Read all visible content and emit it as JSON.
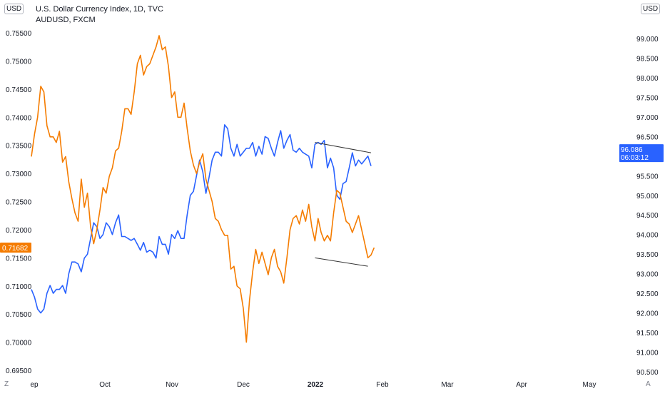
{
  "legend": {
    "title": "U.S. Dollar Currency Index, 1D, TVC",
    "compare": "AUDUSD, FXCM"
  },
  "left_currency": "USD",
  "right_currency": "USD",
  "bottom_left_btn": "Z",
  "bottom_right_btn": "A",
  "colors": {
    "dxy": "#2962ff",
    "audusd": "#f57c00",
    "trend": "#333333",
    "axis_text": "#131722"
  },
  "chart_data": {
    "type": "line",
    "series": [
      {
        "name": "U.S. Dollar Currency Index, 1D, TVC",
        "axis": "right",
        "current_label": "96.086",
        "countdown": "06:03:12",
        "x": [
          0,
          1,
          2,
          3,
          4,
          5,
          6,
          7,
          8,
          9,
          10,
          11,
          12,
          13,
          14,
          15,
          16,
          17,
          18,
          19,
          20,
          21,
          22,
          23,
          24,
          25,
          26,
          27,
          28,
          29,
          30,
          31,
          32,
          33,
          34,
          35,
          36,
          37,
          38,
          39,
          40,
          41,
          42,
          43,
          44,
          45,
          46,
          47,
          48,
          49,
          50,
          51,
          52,
          53,
          54,
          55,
          56,
          57,
          58,
          59,
          60,
          61,
          62,
          63,
          64,
          65,
          66,
          67,
          68,
          69,
          70,
          71,
          72,
          73,
          74,
          75,
          76,
          77,
          78,
          79,
          80,
          81,
          82,
          83,
          84,
          85,
          86,
          87,
          88,
          89,
          90,
          91,
          92,
          93,
          94,
          95,
          96,
          97,
          98,
          99,
          100,
          101,
          102,
          103
        ],
        "values": [
          92.6,
          92.4,
          92.1,
          92.0,
          92.1,
          92.5,
          92.7,
          92.5,
          92.6,
          92.6,
          92.7,
          92.5,
          93.0,
          93.3,
          93.3,
          93.25,
          93.05,
          93.4,
          93.5,
          93.9,
          94.3,
          94.2,
          93.9,
          94.0,
          94.3,
          94.2,
          94.0,
          94.3,
          94.5,
          93.95,
          93.95,
          93.9,
          93.85,
          93.9,
          93.75,
          93.6,
          93.8,
          93.55,
          93.6,
          93.55,
          93.4,
          93.95,
          93.75,
          93.75,
          93.5,
          94.0,
          93.9,
          94.1,
          93.9,
          93.9,
          94.5,
          95.0,
          95.1,
          95.5,
          95.9,
          95.6,
          95.05,
          95.45,
          95.9,
          96.1,
          96.1,
          96.0,
          96.8,
          96.7,
          96.2,
          96.0,
          96.3,
          96.0,
          96.1,
          96.2,
          96.2,
          96.35,
          96.0,
          96.25,
          96.05,
          96.5,
          96.45,
          96.2,
          96.0,
          96.35,
          96.65,
          96.2,
          96.4,
          96.55,
          96.15,
          96.1,
          96.2,
          96.1,
          96.05,
          96.0,
          95.7,
          96.3,
          96.35,
          96.3,
          96.4,
          95.7,
          95.95,
          95.7,
          95.0,
          94.9,
          95.3,
          95.35,
          95.7,
          96.086
        ],
        "extra": [
          [
            104,
            95.75
          ],
          [
            105,
            95.9
          ],
          [
            106,
            95.8
          ],
          [
            107,
            95.9
          ],
          [
            108,
            96.0
          ],
          [
            109,
            95.75
          ]
        ]
      },
      {
        "name": "AUDUSD, FXCM",
        "axis": "left",
        "current_label": "0.71682",
        "x": [
          0,
          1,
          2,
          3,
          4,
          5,
          6,
          7,
          8,
          9,
          10,
          11,
          12,
          13,
          14,
          15,
          16,
          17,
          18,
          19,
          20,
          21,
          22,
          23,
          24,
          25,
          26,
          27,
          28,
          29,
          30,
          31,
          32,
          33,
          34,
          35,
          36,
          37,
          38,
          39,
          40,
          41,
          42,
          43,
          44,
          45,
          46,
          47,
          48,
          49,
          50,
          51,
          52,
          53,
          54,
          55,
          56,
          57,
          58,
          59,
          60,
          61,
          62,
          63,
          64,
          65,
          66,
          67,
          68,
          69,
          70,
          71,
          72,
          73,
          74,
          75,
          76,
          77,
          78,
          79,
          80,
          81,
          82,
          83,
          84,
          85,
          86,
          87,
          88,
          89,
          90,
          91,
          92,
          93,
          94,
          95,
          96,
          97,
          98,
          99,
          100,
          101,
          102,
          103
        ],
        "values": [
          0.733,
          0.737,
          0.74,
          0.7455,
          0.7445,
          0.7385,
          0.7365,
          0.7365,
          0.7355,
          0.7375,
          0.732,
          0.733,
          0.7285,
          0.7255,
          0.723,
          0.7215,
          0.729,
          0.724,
          0.7265,
          0.7205,
          0.7175,
          0.72,
          0.7235,
          0.7275,
          0.7265,
          0.7295,
          0.731,
          0.734,
          0.7345,
          0.7375,
          0.7415,
          0.7415,
          0.7405,
          0.7445,
          0.7495,
          0.751,
          0.7475,
          0.749,
          0.7495,
          0.751,
          0.7525,
          0.7545,
          0.752,
          0.7525,
          0.749,
          0.7435,
          0.7445,
          0.74,
          0.74,
          0.7425,
          0.738,
          0.734,
          0.7315,
          0.73,
          0.732,
          0.7335,
          0.729,
          0.727,
          0.725,
          0.722,
          0.7215,
          0.72,
          0.719,
          0.719,
          0.713,
          0.7135,
          0.71,
          0.7095,
          0.706,
          0.7,
          0.7075,
          0.7125,
          0.7165,
          0.714,
          0.716,
          0.714,
          0.712,
          0.715,
          0.7165,
          0.7135,
          0.7125,
          0.7105,
          0.715,
          0.72,
          0.722,
          0.7225,
          0.721,
          0.7235,
          0.7215,
          0.7245,
          0.7205,
          0.718,
          0.722,
          0.7195,
          0.718,
          0.719,
          0.718,
          0.723,
          0.727,
          0.7265,
          0.724,
          0.7215,
          0.721,
          0.7195
        ],
        "extra": [
          [
            104,
            0.721
          ],
          [
            105,
            0.7225
          ],
          [
            106,
            0.72
          ],
          [
            107,
            0.7175
          ],
          [
            108,
            0.715
          ],
          [
            109,
            0.7155
          ],
          [
            110,
            0.7168
          ]
        ]
      }
    ],
    "x_ticks": [
      "ep",
      "Oct",
      "Nov",
      "Dec",
      "2022",
      "Feb",
      "Mar",
      "Apr",
      "May"
    ],
    "left_ticks": [
      "0.75500",
      "0.75000",
      "0.74500",
      "0.74000",
      "0.73500",
      "0.73000",
      "0.72500",
      "0.72000",
      "0.71500",
      "0.71000",
      "0.70500",
      "0.70000",
      "0.69500"
    ],
    "right_ticks": [
      "99.000",
      "98.500",
      "98.000",
      "97.500",
      "97.000",
      "96.500",
      "96.000",
      "95.500",
      "95.000",
      "94.500",
      "94.000",
      "93.500",
      "93.000",
      "92.500",
      "92.000",
      "91.500",
      "91.000",
      "90.500"
    ],
    "left_range": [
      0.695,
      0.758
    ],
    "right_range": [
      90.5,
      99.35
    ],
    "grid": false,
    "legend_position": "top-left",
    "trendlines": [
      {
        "series": "dxy",
        "from": [
          91,
          96.35
        ],
        "to": [
          109,
          96.086
        ]
      },
      {
        "series": "audusd",
        "from": [
          91,
          0.715
        ],
        "to": [
          108,
          0.7135
        ]
      }
    ]
  }
}
